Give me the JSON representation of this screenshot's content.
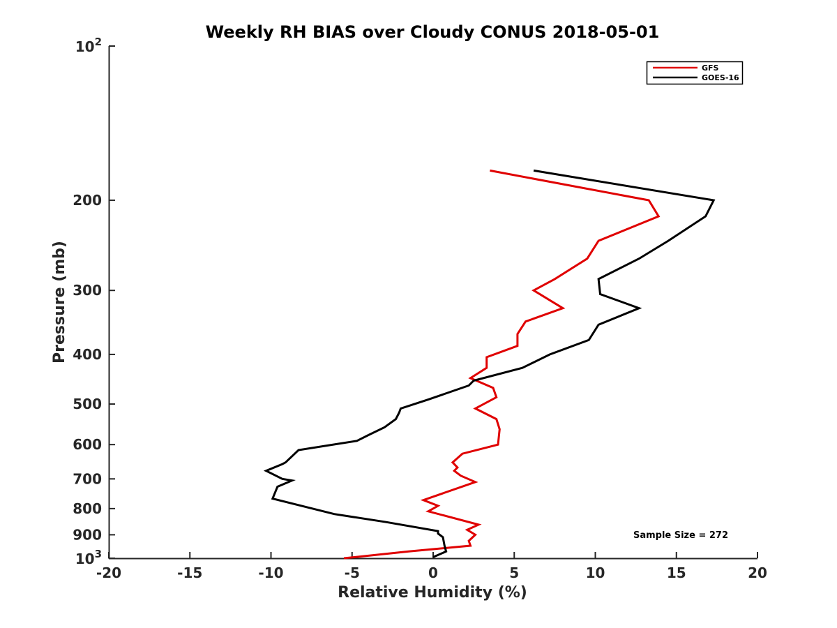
{
  "chart_data": {
    "type": "line",
    "title": "Weekly RH BIAS over Cloudy CONUS 2018-05-01",
    "xlabel": "Relative Humidity (%)",
    "ylabel": "Pressure (mb)",
    "xlim": [
      -20,
      20
    ],
    "ylim": [
      100,
      1000
    ],
    "y_scale": "log",
    "y_reversed": true,
    "x_ticks": [
      -20,
      -15,
      -10,
      -5,
      0,
      5,
      10,
      15,
      20
    ],
    "x_tick_labels": [
      "-20",
      "-15",
      "-10",
      "-5",
      "0",
      "5",
      "10",
      "15",
      "20"
    ],
    "y_ticks": [
      200,
      300,
      400,
      500,
      600,
      700,
      800,
      900
    ],
    "y_tick_labels": [
      "200",
      "300",
      "400",
      "500",
      "600",
      "700",
      "800",
      "900"
    ],
    "y_end_ticks": [
      {
        "value": 100,
        "base": "10",
        "exp": "2"
      },
      {
        "value": 1000,
        "base": "10",
        "exp": "3"
      }
    ],
    "legend_position": "top-right",
    "grid": false,
    "annotation": "Sample Size = 272",
    "series": [
      {
        "name": "GFS",
        "color": "#e00000",
        "points": [
          [
            3.5,
            175
          ],
          [
            13.3,
            200
          ],
          [
            13.9,
            215
          ],
          [
            10.2,
            240
          ],
          [
            9.5,
            260
          ],
          [
            7.5,
            285
          ],
          [
            6.2,
            300
          ],
          [
            8.0,
            325
          ],
          [
            5.7,
            345
          ],
          [
            5.2,
            365
          ],
          [
            5.2,
            385
          ],
          [
            3.3,
            405
          ],
          [
            3.3,
            425
          ],
          [
            2.3,
            445
          ],
          [
            3.7,
            465
          ],
          [
            3.9,
            485
          ],
          [
            2.6,
            510
          ],
          [
            3.9,
            535
          ],
          [
            4.1,
            560
          ],
          [
            4.0,
            600
          ],
          [
            1.8,
            625
          ],
          [
            1.2,
            650
          ],
          [
            1.5,
            665
          ],
          [
            1.3,
            675
          ],
          [
            1.7,
            690
          ],
          [
            2.6,
            710
          ],
          [
            -0.6,
            770
          ],
          [
            0.3,
            790
          ],
          [
            -0.3,
            810
          ],
          [
            2.8,
            860
          ],
          [
            2.1,
            880
          ],
          [
            2.6,
            900
          ],
          [
            2.2,
            925
          ],
          [
            2.3,
            945
          ],
          [
            -1.5,
            970
          ],
          [
            -5.5,
            1000
          ]
        ]
      },
      {
        "name": "GOES-16",
        "color": "#000000",
        "points": [
          [
            6.2,
            175
          ],
          [
            17.3,
            200
          ],
          [
            16.8,
            215
          ],
          [
            14.5,
            240
          ],
          [
            12.7,
            260
          ],
          [
            10.2,
            285
          ],
          [
            10.3,
            305
          ],
          [
            12.7,
            325
          ],
          [
            10.2,
            350
          ],
          [
            9.6,
            375
          ],
          [
            7.2,
            400
          ],
          [
            5.5,
            425
          ],
          [
            2.5,
            450
          ],
          [
            2.2,
            460
          ],
          [
            -0.3,
            490
          ],
          [
            -2.0,
            510
          ],
          [
            -2.1,
            520
          ],
          [
            -2.3,
            535
          ],
          [
            -3.0,
            555
          ],
          [
            -4.0,
            575
          ],
          [
            -4.7,
            590
          ],
          [
            -8.3,
            615
          ],
          [
            -9.1,
            650
          ],
          [
            -9.3,
            655
          ],
          [
            -10.3,
            675
          ],
          [
            -9.3,
            700
          ],
          [
            -8.7,
            705
          ],
          [
            -9.6,
            725
          ],
          [
            -9.9,
            765
          ],
          [
            -6.1,
            820
          ],
          [
            -2.9,
            850
          ],
          [
            0.3,
            885
          ],
          [
            0.3,
            895
          ],
          [
            0.6,
            910
          ],
          [
            0.7,
            945
          ],
          [
            0.8,
            970
          ],
          [
            0.0,
            995
          ]
        ]
      }
    ]
  }
}
